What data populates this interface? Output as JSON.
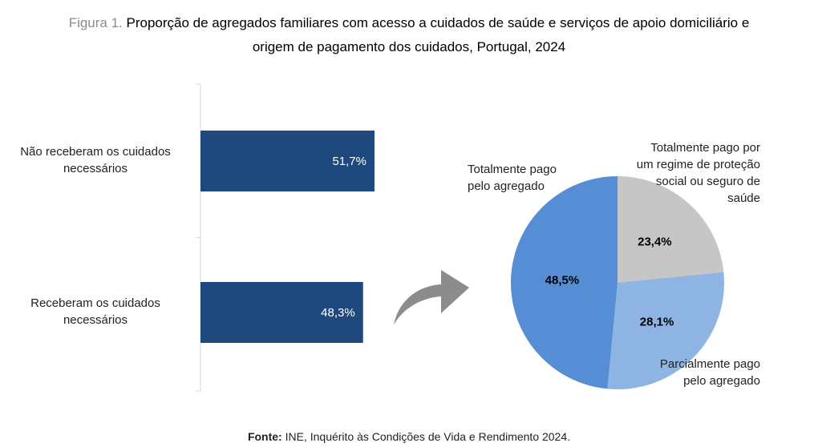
{
  "title": {
    "prefix": "Figura 1.",
    "line1": "Proporção de agregados familiares com acesso a cuidados de saúde e serviços de apoio domiciliário e",
    "line2": "origem de pagamento dos cuidados, Portugal, 2024"
  },
  "source": {
    "label": "Fonte:",
    "text": "INE, Inquérito às Condições de Vida e Rendimento 2024."
  },
  "colors": {
    "bar": "#1f497d",
    "pie_self": "#558ed5",
    "pie_partial": "#8eb4e3",
    "pie_insurance": "#c6c6c6",
    "arrow": "#8c8c8c",
    "axis": "#d9d9d9"
  },
  "chart_data": [
    {
      "type": "bar",
      "orientation": "horizontal",
      "categories": [
        [
          "Não receberam os cuidados",
          "necessários"
        ],
        [
          "Receberam os cuidados",
          "necessários"
        ]
      ],
      "values": [
        51.7,
        48.3
      ],
      "data_labels": [
        "51,7%",
        "48,3%"
      ],
      "xlim": [
        0,
        100
      ],
      "grid": false
    },
    {
      "type": "pie",
      "slices": [
        {
          "label": [
            "Totalmente pago por",
            "um regime de proteção",
            "social ou seguro de",
            "saúde"
          ],
          "value": 23.4,
          "data_label": "23,4%"
        },
        {
          "label": [
            "Parcialmente pago",
            "pelo agregado"
          ],
          "value": 28.1,
          "data_label": "28,1%"
        },
        {
          "label": [
            "Totalmente pago",
            "pelo agregado"
          ],
          "value": 48.5,
          "data_label": "48,5%"
        }
      ]
    }
  ]
}
